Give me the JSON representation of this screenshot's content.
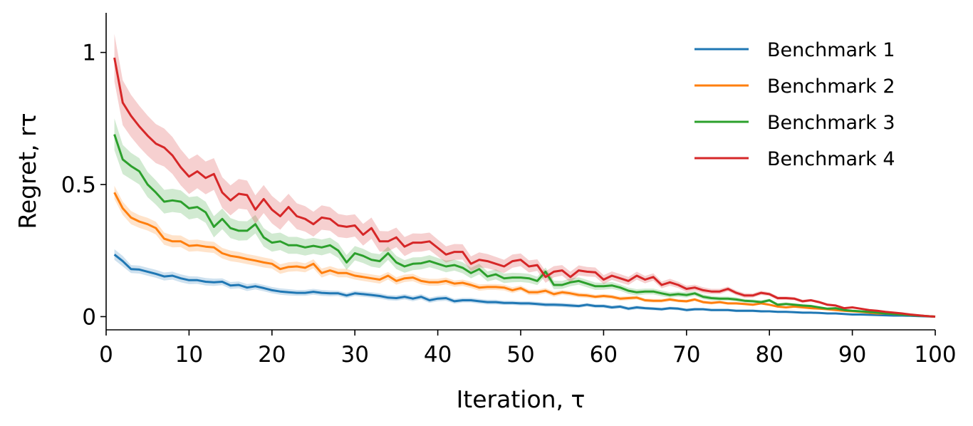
{
  "chart_data": {
    "type": "line",
    "xlabel": "Iteration, τ",
    "ylabel": "Regret, rτ",
    "xlim": [
      0,
      100
    ],
    "ylim": [
      -0.05,
      1.15
    ],
    "xticks": [
      0,
      10,
      20,
      30,
      40,
      50,
      60,
      70,
      80,
      90,
      100
    ],
    "yticks": [
      0,
      0.5,
      1
    ],
    "ytick_labels": [
      "0",
      "0.5",
      "1"
    ],
    "grid": false,
    "legend_position": "top-right",
    "x": [
      1,
      2,
      3,
      4,
      5,
      6,
      7,
      8,
      9,
      10,
      11,
      12,
      13,
      14,
      15,
      16,
      17,
      18,
      19,
      20,
      21,
      22,
      23,
      24,
      25,
      26,
      27,
      28,
      29,
      30,
      31,
      32,
      33,
      34,
      35,
      36,
      37,
      38,
      39,
      40,
      41,
      42,
      43,
      44,
      45,
      46,
      47,
      48,
      49,
      50,
      51,
      52,
      53,
      54,
      55,
      56,
      57,
      58,
      59,
      60,
      61,
      62,
      63,
      64,
      65,
      66,
      67,
      68,
      69,
      70,
      71,
      72,
      73,
      74,
      75,
      76,
      77,
      78,
      79,
      80,
      81,
      82,
      83,
      84,
      85,
      86,
      87,
      88,
      89,
      90,
      91,
      92,
      93,
      94,
      95,
      96,
      97,
      98,
      99,
      100
    ],
    "series": [
      {
        "name": "Benchmark 1",
        "color": "#1f77b4",
        "values": [
          0.235,
          0.21,
          0.18,
          0.178,
          0.17,
          0.162,
          0.152,
          0.155,
          0.145,
          0.138,
          0.138,
          0.132,
          0.13,
          0.132,
          0.118,
          0.12,
          0.11,
          0.115,
          0.108,
          0.1,
          0.095,
          0.092,
          0.09,
          0.09,
          0.094,
          0.09,
          0.088,
          0.088,
          0.08,
          0.088,
          0.085,
          0.082,
          0.078,
          0.072,
          0.07,
          0.075,
          0.068,
          0.075,
          0.062,
          0.068,
          0.07,
          0.058,
          0.062,
          0.062,
          0.058,
          0.055,
          0.055,
          0.052,
          0.052,
          0.05,
          0.05,
          0.048,
          0.045,
          0.045,
          0.044,
          0.042,
          0.04,
          0.045,
          0.04,
          0.04,
          0.035,
          0.038,
          0.03,
          0.035,
          0.032,
          0.03,
          0.028,
          0.032,
          0.03,
          0.025,
          0.028,
          0.028,
          0.025,
          0.025,
          0.025,
          0.022,
          0.022,
          0.022,
          0.02,
          0.02,
          0.018,
          0.018,
          0.017,
          0.015,
          0.015,
          0.014,
          0.012,
          0.012,
          0.01,
          0.008,
          0.008,
          0.007,
          0.006,
          0.005,
          0.004,
          0.004,
          0.003,
          0.002,
          0.001,
          0.0
        ],
        "band": [
          0.02,
          0.02,
          0.015,
          0.015,
          0.015,
          0.015,
          0.015,
          0.015,
          0.015,
          0.015,
          0.014,
          0.014,
          0.014,
          0.013,
          0.013,
          0.013,
          0.013,
          0.012,
          0.012,
          0.012,
          0.012,
          0.012,
          0.011,
          0.011,
          0.011,
          0.011,
          0.011,
          0.01,
          0.01,
          0.01,
          0.01,
          0.01,
          0.01,
          0.01,
          0.01,
          0.01,
          0.01,
          0.01,
          0.01,
          0.01,
          0.01,
          0.009,
          0.009,
          0.009,
          0.009,
          0.009,
          0.009,
          0.008,
          0.008,
          0.008,
          0.008,
          0.008,
          0.008,
          0.008,
          0.008,
          0.008,
          0.007,
          0.007,
          0.007,
          0.007,
          0.007,
          0.007,
          0.007,
          0.007,
          0.006,
          0.006,
          0.006,
          0.006,
          0.006,
          0.006,
          0.006,
          0.005,
          0.005,
          0.005,
          0.005,
          0.005,
          0.005,
          0.005,
          0.005,
          0.004,
          0.004,
          0.004,
          0.004,
          0.004,
          0.004,
          0.003,
          0.003,
          0.003,
          0.003,
          0.003,
          0.002,
          0.002,
          0.002,
          0.002,
          0.002,
          0.001,
          0.001,
          0.001,
          0.001,
          0.0
        ]
      },
      {
        "name": "Benchmark 2",
        "color": "#ff7f0e",
        "values": [
          0.47,
          0.41,
          0.375,
          0.36,
          0.35,
          0.335,
          0.295,
          0.285,
          0.285,
          0.268,
          0.27,
          0.265,
          0.262,
          0.24,
          0.23,
          0.225,
          0.218,
          0.212,
          0.205,
          0.2,
          0.18,
          0.188,
          0.19,
          0.185,
          0.2,
          0.165,
          0.175,
          0.165,
          0.165,
          0.155,
          0.15,
          0.145,
          0.14,
          0.155,
          0.135,
          0.145,
          0.148,
          0.135,
          0.13,
          0.13,
          0.135,
          0.125,
          0.128,
          0.12,
          0.11,
          0.112,
          0.112,
          0.11,
          0.1,
          0.108,
          0.092,
          0.092,
          0.098,
          0.085,
          0.092,
          0.088,
          0.082,
          0.08,
          0.075,
          0.078,
          0.075,
          0.068,
          0.07,
          0.072,
          0.062,
          0.06,
          0.06,
          0.065,
          0.06,
          0.058,
          0.065,
          0.055,
          0.052,
          0.055,
          0.05,
          0.05,
          0.048,
          0.045,
          0.05,
          0.045,
          0.038,
          0.035,
          0.038,
          0.035,
          0.032,
          0.03,
          0.028,
          0.025,
          0.022,
          0.02,
          0.018,
          0.015,
          0.012,
          0.012,
          0.01,
          0.008,
          0.006,
          0.004,
          0.002,
          0.0
        ],
        "band": [
          0.025,
          0.025,
          0.025,
          0.024,
          0.024,
          0.024,
          0.023,
          0.023,
          0.022,
          0.022,
          0.022,
          0.021,
          0.021,
          0.02,
          0.02,
          0.02,
          0.019,
          0.019,
          0.019,
          0.018,
          0.018,
          0.018,
          0.018,
          0.017,
          0.017,
          0.017,
          0.016,
          0.016,
          0.016,
          0.015,
          0.015,
          0.015,
          0.015,
          0.014,
          0.014,
          0.014,
          0.014,
          0.013,
          0.013,
          0.013,
          0.013,
          0.012,
          0.012,
          0.012,
          0.012,
          0.011,
          0.011,
          0.011,
          0.011,
          0.01,
          0.01,
          0.01,
          0.01,
          0.01,
          0.009,
          0.009,
          0.009,
          0.009,
          0.008,
          0.008,
          0.008,
          0.008,
          0.008,
          0.007,
          0.007,
          0.007,
          0.007,
          0.007,
          0.006,
          0.006,
          0.006,
          0.006,
          0.006,
          0.005,
          0.005,
          0.005,
          0.005,
          0.005,
          0.004,
          0.004,
          0.004,
          0.004,
          0.004,
          0.003,
          0.003,
          0.003,
          0.003,
          0.003,
          0.002,
          0.002,
          0.002,
          0.002,
          0.002,
          0.001,
          0.001,
          0.001,
          0.001,
          0.001,
          0.001,
          0.0
        ]
      },
      {
        "name": "Benchmark 3",
        "color": "#2ca02c",
        "values": [
          0.69,
          0.595,
          0.57,
          0.55,
          0.5,
          0.47,
          0.435,
          0.44,
          0.435,
          0.41,
          0.415,
          0.395,
          0.34,
          0.37,
          0.335,
          0.325,
          0.325,
          0.35,
          0.3,
          0.28,
          0.285,
          0.27,
          0.27,
          0.262,
          0.268,
          0.262,
          0.27,
          0.25,
          0.205,
          0.24,
          0.23,
          0.215,
          0.21,
          0.24,
          0.205,
          0.19,
          0.2,
          0.202,
          0.21,
          0.2,
          0.19,
          0.195,
          0.185,
          0.165,
          0.18,
          0.152,
          0.16,
          0.145,
          0.148,
          0.148,
          0.145,
          0.135,
          0.17,
          0.12,
          0.12,
          0.13,
          0.135,
          0.125,
          0.115,
          0.115,
          0.118,
          0.11,
          0.098,
          0.092,
          0.095,
          0.095,
          0.088,
          0.082,
          0.085,
          0.082,
          0.088,
          0.075,
          0.07,
          0.068,
          0.068,
          0.065,
          0.06,
          0.058,
          0.055,
          0.062,
          0.045,
          0.048,
          0.045,
          0.042,
          0.04,
          0.035,
          0.03,
          0.032,
          0.025,
          0.022,
          0.02,
          0.018,
          0.015,
          0.012,
          0.01,
          0.008,
          0.006,
          0.004,
          0.002,
          0.0
        ],
        "band": [
          0.06,
          0.055,
          0.05,
          0.05,
          0.048,
          0.046,
          0.045,
          0.044,
          0.043,
          0.042,
          0.041,
          0.04,
          0.04,
          0.039,
          0.038,
          0.037,
          0.036,
          0.035,
          0.035,
          0.034,
          0.033,
          0.032,
          0.032,
          0.031,
          0.03,
          0.03,
          0.029,
          0.028,
          0.028,
          0.027,
          0.027,
          0.026,
          0.026,
          0.025,
          0.025,
          0.024,
          0.024,
          0.023,
          0.023,
          0.022,
          0.022,
          0.021,
          0.021,
          0.02,
          0.02,
          0.019,
          0.019,
          0.018,
          0.018,
          0.017,
          0.017,
          0.016,
          0.016,
          0.016,
          0.015,
          0.015,
          0.014,
          0.014,
          0.014,
          0.013,
          0.013,
          0.012,
          0.012,
          0.012,
          0.011,
          0.011,
          0.011,
          0.01,
          0.01,
          0.01,
          0.009,
          0.009,
          0.009,
          0.008,
          0.008,
          0.008,
          0.007,
          0.007,
          0.007,
          0.006,
          0.006,
          0.006,
          0.005,
          0.005,
          0.005,
          0.004,
          0.004,
          0.004,
          0.003,
          0.003,
          0.003,
          0.002,
          0.002,
          0.002,
          0.002,
          0.001,
          0.001,
          0.001,
          0.001,
          0.0
        ]
      },
      {
        "name": "Benchmark 4",
        "color": "#d62728",
        "values": [
          0.98,
          0.81,
          0.76,
          0.72,
          0.685,
          0.655,
          0.64,
          0.61,
          0.565,
          0.53,
          0.55,
          0.525,
          0.54,
          0.47,
          0.44,
          0.465,
          0.46,
          0.405,
          0.445,
          0.405,
          0.38,
          0.415,
          0.38,
          0.37,
          0.35,
          0.375,
          0.37,
          0.345,
          0.34,
          0.345,
          0.31,
          0.335,
          0.285,
          0.285,
          0.3,
          0.265,
          0.28,
          0.28,
          0.285,
          0.26,
          0.235,
          0.245,
          0.245,
          0.2,
          0.215,
          0.21,
          0.2,
          0.19,
          0.21,
          0.215,
          0.19,
          0.195,
          0.15,
          0.17,
          0.175,
          0.15,
          0.175,
          0.17,
          0.168,
          0.14,
          0.155,
          0.145,
          0.135,
          0.155,
          0.14,
          0.15,
          0.12,
          0.13,
          0.12,
          0.105,
          0.11,
          0.1,
          0.095,
          0.095,
          0.105,
          0.09,
          0.08,
          0.08,
          0.09,
          0.085,
          0.07,
          0.07,
          0.068,
          0.058,
          0.062,
          0.055,
          0.045,
          0.042,
          0.032,
          0.035,
          0.03,
          0.025,
          0.022,
          0.018,
          0.015,
          0.012,
          0.008,
          0.005,
          0.002,
          0.0
        ],
        "band": [
          0.09,
          0.085,
          0.08,
          0.078,
          0.076,
          0.074,
          0.072,
          0.07,
          0.068,
          0.066,
          0.064,
          0.062,
          0.06,
          0.058,
          0.057,
          0.056,
          0.055,
          0.054,
          0.053,
          0.052,
          0.051,
          0.05,
          0.049,
          0.048,
          0.047,
          0.046,
          0.045,
          0.044,
          0.043,
          0.042,
          0.041,
          0.04,
          0.039,
          0.038,
          0.037,
          0.036,
          0.035,
          0.034,
          0.033,
          0.032,
          0.031,
          0.03,
          0.029,
          0.028,
          0.028,
          0.027,
          0.026,
          0.025,
          0.025,
          0.024,
          0.023,
          0.022,
          0.022,
          0.021,
          0.02,
          0.02,
          0.019,
          0.018,
          0.018,
          0.017,
          0.016,
          0.016,
          0.015,
          0.015,
          0.014,
          0.014,
          0.013,
          0.013,
          0.012,
          0.012,
          0.011,
          0.011,
          0.01,
          0.01,
          0.009,
          0.009,
          0.009,
          0.008,
          0.008,
          0.007,
          0.007,
          0.007,
          0.006,
          0.006,
          0.005,
          0.005,
          0.005,
          0.004,
          0.004,
          0.003,
          0.003,
          0.003,
          0.002,
          0.002,
          0.002,
          0.001,
          0.001,
          0.001,
          0.001,
          0.0
        ]
      }
    ]
  }
}
